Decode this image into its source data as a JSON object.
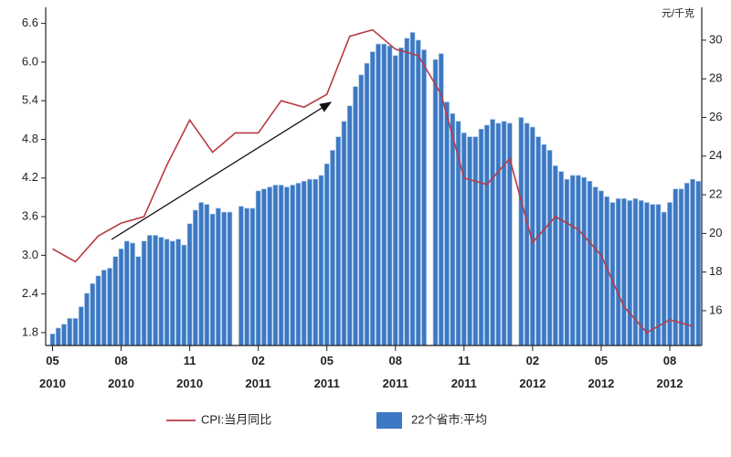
{
  "chart_data": {
    "type": "combo",
    "y2_label": "元/千克",
    "xlim": [
      -0.3,
      28.4
    ],
    "xticks": [
      {
        "value": 0,
        "label": "05\n2010"
      },
      {
        "value": 3,
        "label": "08\n2010"
      },
      {
        "value": 6,
        "label": "11\n2010"
      },
      {
        "value": 9,
        "label": "02\n2011"
      },
      {
        "value": 12,
        "label": "05\n2011"
      },
      {
        "value": 15,
        "label": "08\n2011"
      },
      {
        "value": 18,
        "label": "11\n2011"
      },
      {
        "value": 21,
        "label": "02\n2012"
      },
      {
        "value": 24,
        "label": "05\n2012"
      },
      {
        "value": 27,
        "label": "08\n2012"
      }
    ],
    "ylim": [
      1.6,
      6.85
    ],
    "yticks": [
      1.8,
      2.4,
      {
        "value": 3,
        "label": "3.0"
      },
      3.6,
      4.2,
      4.8,
      5.4,
      {
        "value": 6,
        "label": "6.0"
      },
      6.6
    ],
    "y2lim": [
      14.2,
      31.7
    ],
    "y2ticks": [
      16,
      18,
      20,
      22,
      24,
      26,
      28,
      30
    ],
    "series": [
      {
        "name": "CPI:当月同比",
        "type": "line",
        "color": "#b83a45",
        "x": [
          0,
          1,
          2,
          3,
          4,
          5,
          6,
          7,
          8,
          9,
          10,
          11,
          12,
          13,
          14,
          15,
          16,
          17,
          18,
          19,
          20,
          21,
          22,
          23,
          24,
          25,
          26,
          27,
          28
        ],
        "values": [
          3.1,
          2.9,
          3.3,
          3.5,
          3.6,
          4.4,
          5.1,
          4.6,
          4.9,
          4.9,
          5.4,
          5.3,
          5.5,
          6.4,
          6.5,
          6.2,
          6.1,
          5.5,
          4.2,
          4.1,
          4.5,
          3.2,
          3.6,
          3.4,
          3.0,
          2.2,
          1.8,
          2.0,
          1.9
        ]
      },
      {
        "name": "22个省市:平均",
        "type": "bar",
        "color": "#3c78c3",
        "axis": "y2",
        "x": [
          0,
          0.25,
          0.5,
          0.75,
          1,
          1.25,
          1.5,
          1.75,
          2,
          2.25,
          2.5,
          2.75,
          3,
          3.25,
          3.5,
          3.75,
          4,
          4.25,
          4.5,
          4.75,
          5,
          5.25,
          5.5,
          5.75,
          6,
          6.25,
          6.5,
          6.75,
          7,
          7.25,
          7.5,
          7.75,
          8,
          8.25,
          8.5,
          8.75,
          9,
          9.25,
          9.5,
          9.75,
          10,
          10.25,
          10.5,
          10.75,
          11,
          11.25,
          11.5,
          11.75,
          12,
          12.25,
          12.5,
          12.75,
          13,
          13.25,
          13.5,
          13.75,
          14,
          14.25,
          14.5,
          14.75,
          15,
          15.25,
          15.5,
          15.75,
          16,
          16.25,
          16.5,
          16.75,
          17,
          17.25,
          17.5,
          17.75,
          18,
          18.25,
          18.5,
          18.75,
          19,
          19.25,
          19.5,
          19.75,
          20,
          20.25,
          20.5,
          20.75,
          21,
          21.25,
          21.5,
          21.75,
          22,
          22.25,
          22.5,
          22.75,
          23,
          23.25,
          23.5,
          23.75,
          24,
          24.25,
          24.5,
          24.75,
          25,
          25.25,
          25.5,
          25.75,
          26,
          26.25,
          26.5,
          26.75,
          27,
          27.25,
          27.5,
          27.75,
          28,
          28.25
        ],
        "values": [
          14.8,
          15.1,
          15.3,
          15.6,
          15.6,
          16.2,
          16.9,
          17.4,
          17.8,
          18.1,
          18.2,
          18.8,
          19.2,
          19.6,
          19.5,
          18.8,
          19.6,
          19.9,
          19.9,
          19.8,
          19.7,
          19.6,
          19.7,
          19.4,
          20.5,
          21.2,
          21.6,
          21.5,
          21.0,
          21.3,
          21.1,
          21.1,
          null,
          21.4,
          21.3,
          21.3,
          22.2,
          22.3,
          22.4,
          22.5,
          22.5,
          22.4,
          22.5,
          22.6,
          22.7,
          22.8,
          22.8,
          23.0,
          23.6,
          24.3,
          25.0,
          25.8,
          26.6,
          27.6,
          28.2,
          28.8,
          29.4,
          29.8,
          29.8,
          29.7,
          29.2,
          29.6,
          30.1,
          30.4,
          30.0,
          29.5,
          null,
          29.0,
          29.3,
          26.8,
          26.2,
          25.8,
          25.2,
          25.0,
          25.0,
          25.4,
          25.6,
          25.9,
          25.7,
          25.8,
          25.7,
          null,
          26.0,
          25.7,
          25.5,
          25.0,
          24.6,
          24.3,
          23.5,
          23.2,
          22.8,
          23.0,
          23.0,
          22.9,
          22.7,
          22.4,
          22.2,
          21.9,
          21.6,
          21.8,
          21.8,
          21.7,
          21.8,
          21.7,
          21.6,
          21.5,
          21.5,
          21.1,
          21.6,
          22.3,
          22.3,
          22.6,
          22.8,
          22.7
        ]
      }
    ]
  }
}
